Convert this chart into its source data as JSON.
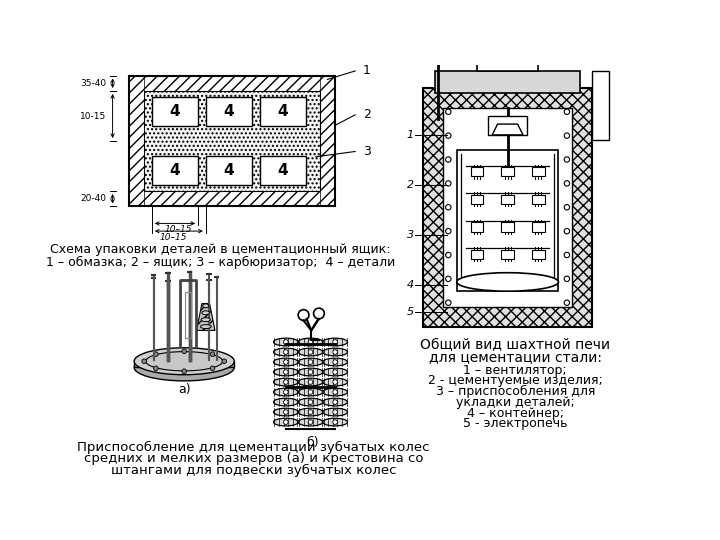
{
  "bg_color": "#ffffff",
  "caption_top": "Схема упаковки деталей в цементационный ящик:",
  "caption_top2": "1 – обмазка; 2 – ящик; 3 – карбюризатор;  4 – детали",
  "caption_bottom_line1": "Приспособление для цементации зубчатых колес",
  "caption_bottom_line2": "средних и мелких размеров (а) и крестовина со",
  "caption_bottom_line3": "штангами для подвески зубчатых колес",
  "caption_right_title_line1": "Общий вид шахтной печи",
  "caption_right_title_line2": "для цементации стали:",
  "caption_right_line1": "1 – вентилятор;",
  "caption_right_line2": "2 - цементуемые изделия;",
  "caption_right_line3": "3 – приспособления для",
  "caption_right_line4": "укладки деталей;",
  "caption_right_line5": "4 – контейнер;",
  "caption_right_line6": "5 - электропечь",
  "label_a": "а)",
  "label_b": "б)",
  "dim_35_40": "35-40",
  "dim_10_15a": "10-15",
  "dim_20_40": "20-40",
  "dim_10_15b": "10–15",
  "dim_10_15c": "10–15"
}
